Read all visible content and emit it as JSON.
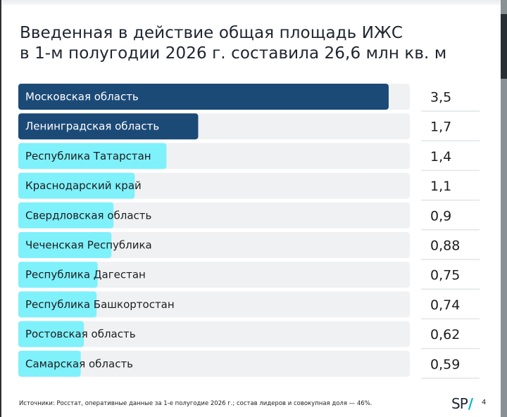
{
  "title": {
    "line1": "Введенная в действие общая площадь ИЖС",
    "line2": "в 1-м полугодии 2026 г. составила 26,6 млн кв. м"
  },
  "chart_data": {
    "type": "bar",
    "orientation": "horizontal",
    "categories": [
      "Московская область",
      "Ленинградская область",
      "Республика Татарстан",
      "Краснодарский край",
      "Свердловская область",
      "Чеченская Республика",
      "Республика Дагестан",
      "Республика Башкортостан",
      "Ростовская область",
      "Самарская область"
    ],
    "values": [
      3.5,
      1.7,
      1.4,
      1.1,
      0.9,
      0.88,
      0.75,
      0.74,
      0.62,
      0.59
    ],
    "value_labels": [
      "3,5",
      "1,7",
      "1,4",
      "1,1",
      "0,9",
      "0,88",
      "0,75",
      "0,74",
      "0,62",
      "0,59"
    ],
    "xlim": [
      0,
      3.7
    ],
    "highlight_count": 2,
    "colors": {
      "highlight": "#1c4a77",
      "normal": "#7ff1fb",
      "track": "#f0f1f3",
      "label_on_dark": "#ffffff",
      "label_on_light": "#1d1d1f"
    }
  },
  "footnote": "Источники: Росстат, оперативные данные за 1-е полугодие 2026 г.; состав лидеров и совокупная доля — 46%.",
  "logo": {
    "text": "SP",
    "slash": "/"
  },
  "page_number": "4"
}
